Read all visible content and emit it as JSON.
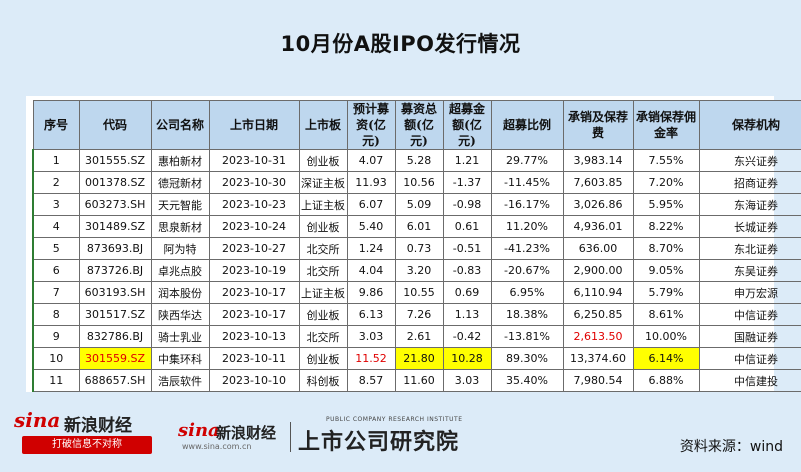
{
  "title": "10月份A股IPO发行情况",
  "table": {
    "headers": [
      "序号",
      "代码",
      "公司名称",
      "上市日期",
      "上市板",
      "预计募资(亿元)",
      "募资总额(亿元)",
      "超募金额(亿元)",
      "超募比例",
      "承销及保荐费",
      "承销保荐佣金率",
      "保荐机构"
    ],
    "rows": [
      [
        "1",
        "301555.SZ",
        "惠柏新材",
        "2023-10-31",
        "创业板",
        "4.07",
        "5.28",
        "1.21",
        "29.77%",
        "3,983.14",
        "7.55%",
        "东兴证券"
      ],
      [
        "2",
        "001378.SZ",
        "德冠新材",
        "2023-10-30",
        "深证主板",
        "11.93",
        "10.56",
        "-1.37",
        "-11.45%",
        "7,603.85",
        "7.20%",
        "招商证券"
      ],
      [
        "3",
        "603273.SH",
        "天元智能",
        "2023-10-23",
        "上证主板",
        "6.07",
        "5.09",
        "-0.98",
        "-16.17%",
        "3,026.86",
        "5.95%",
        "东海证券"
      ],
      [
        "4",
        "301489.SZ",
        "思泉新材",
        "2023-10-24",
        "创业板",
        "5.40",
        "6.01",
        "0.61",
        "11.20%",
        "4,936.01",
        "8.22%",
        "长城证券"
      ],
      [
        "5",
        "873693.BJ",
        "阿为特",
        "2023-10-27",
        "北交所",
        "1.24",
        "0.73",
        "-0.51",
        "-41.23%",
        "636.00",
        "8.70%",
        "东北证券"
      ],
      [
        "6",
        "873726.BJ",
        "卓兆点胶",
        "2023-10-19",
        "北交所",
        "4.04",
        "3.20",
        "-0.83",
        "-20.67%",
        "2,900.00",
        "9.05%",
        "东吴证券"
      ],
      [
        "7",
        "603193.SH",
        "润本股份",
        "2023-10-17",
        "上证主板",
        "9.86",
        "10.55",
        "0.69",
        "6.95%",
        "6,110.94",
        "5.79%",
        "申万宏源"
      ],
      [
        "8",
        "301517.SZ",
        "陕西华达",
        "2023-10-17",
        "创业板",
        "6.13",
        "7.26",
        "1.13",
        "18.38%",
        "6,250.85",
        "8.61%",
        "中信证券"
      ],
      [
        "9",
        "832786.BJ",
        "骑士乳业",
        "2023-10-13",
        "北交所",
        "3.03",
        "2.61",
        "-0.42",
        "-13.81%",
        "2,613.50",
        "10.00%",
        "国融证券"
      ],
      [
        "10",
        "301559.SZ",
        "中集环科",
        "2023-10-11",
        "创业板",
        "11.52",
        "21.80",
        "10.28",
        "89.30%",
        "13,374.60",
        "6.14%",
        "中信证券"
      ],
      [
        "11",
        "688657.SH",
        "浩辰软件",
        "2023-10-10",
        "科创板",
        "8.57",
        "11.60",
        "3.03",
        "35.40%",
        "7,980.54",
        "6.88%",
        "中信建投"
      ]
    ]
  },
  "highlights": {
    "red": [
      "9.10",
      "10.2",
      "10.6"
    ],
    "yellow": [
      "10.2",
      "10.7",
      "10.8",
      "10.11"
    ]
  },
  "footer": {
    "logo1_sina": "sina",
    "logo1_text": "新浪财经",
    "logo1_tagline": "打破信息不对称",
    "logo2_sina": "sina",
    "logo2_text": "新浪财经",
    "logo2_url": "www.sina.com.cn",
    "logo3_en": "PUBLIC COMPANY RESEARCH INSTITUTE",
    "logo3_text": "上市公司研究院",
    "source": "资料来源：wind"
  },
  "colors": {
    "header_bg": "#bed7ee",
    "page_bg": "#dcebf8",
    "highlight_red": "#e00000",
    "highlight_yellow": "#ffff00",
    "brand_red": "#d00000"
  }
}
